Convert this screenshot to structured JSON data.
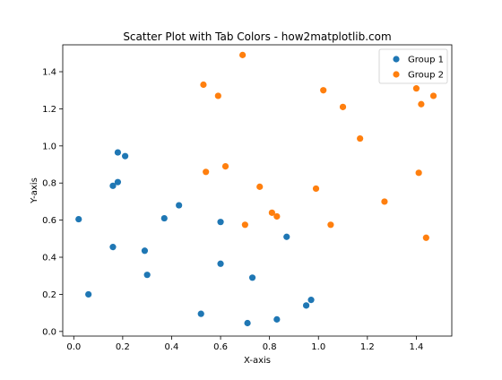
{
  "chart_data": {
    "type": "scatter",
    "title": "Scatter Plot with Tab Colors - how2matplotlib.com",
    "xlabel": "X-axis",
    "ylabel": "Y-axis",
    "xlim": [
      -0.045,
      1.545
    ],
    "ylim": [
      -0.025,
      1.545
    ],
    "xticks": [
      0.0,
      0.2,
      0.4,
      0.6,
      0.8,
      1.0,
      1.2,
      1.4
    ],
    "xtick_labels": [
      "0.0",
      "0.2",
      "0.4",
      "0.6",
      "0.8",
      "1.0",
      "1.2",
      "1.4"
    ],
    "yticks": [
      0.0,
      0.2,
      0.4,
      0.6,
      0.8,
      1.0,
      1.2,
      1.4
    ],
    "ytick_labels": [
      "0.0",
      "0.2",
      "0.4",
      "0.6",
      "0.8",
      "1.0",
      "1.2",
      "1.4"
    ],
    "grid": false,
    "legend_position": "top-right",
    "series": [
      {
        "name": "Group 1",
        "color": "#1f77b4",
        "points": [
          [
            0.02,
            0.605
          ],
          [
            0.06,
            0.2
          ],
          [
            0.16,
            0.785
          ],
          [
            0.16,
            0.455
          ],
          [
            0.18,
            0.965
          ],
          [
            0.18,
            0.805
          ],
          [
            0.21,
            0.945
          ],
          [
            0.29,
            0.435
          ],
          [
            0.3,
            0.305
          ],
          [
            0.37,
            0.61
          ],
          [
            0.43,
            0.68
          ],
          [
            0.52,
            0.095
          ],
          [
            0.6,
            0.59
          ],
          [
            0.6,
            0.365
          ],
          [
            0.71,
            0.045
          ],
          [
            0.73,
            0.29
          ],
          [
            0.83,
            0.065
          ],
          [
            0.87,
            0.51
          ],
          [
            0.95,
            0.14
          ],
          [
            0.97,
            0.17
          ]
        ]
      },
      {
        "name": "Group 2",
        "color": "#ff7f0e",
        "points": [
          [
            0.53,
            1.33
          ],
          [
            0.54,
            0.86
          ],
          [
            0.59,
            1.27
          ],
          [
            0.62,
            0.89
          ],
          [
            0.69,
            1.49
          ],
          [
            0.7,
            0.575
          ],
          [
            0.76,
            0.78
          ],
          [
            0.81,
            0.64
          ],
          [
            0.83,
            0.62
          ],
          [
            0.99,
            0.77
          ],
          [
            1.02,
            1.3
          ],
          [
            1.05,
            0.575
          ],
          [
            1.1,
            1.21
          ],
          [
            1.17,
            1.04
          ],
          [
            1.27,
            0.7
          ],
          [
            1.4,
            1.31
          ],
          [
            1.41,
            0.855
          ],
          [
            1.42,
            1.225
          ],
          [
            1.44,
            0.505
          ],
          [
            1.47,
            1.27
          ]
        ]
      }
    ]
  }
}
